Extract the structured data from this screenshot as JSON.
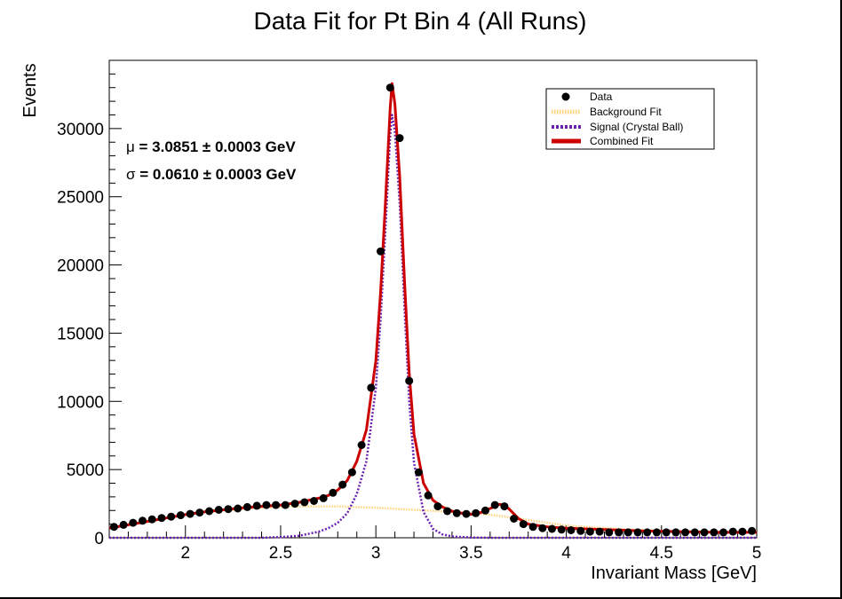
{
  "chart_data": {
    "type": "scatter",
    "title": "Data Fit for Pt Bin 4 (All Runs)",
    "xlabel": "Invariant Mass [GeV]",
    "ylabel": "Events",
    "xlim": [
      1.6,
      5.0
    ],
    "ylim": [
      0,
      35000
    ],
    "xticks": [
      2,
      2.5,
      3,
      3.5,
      4,
      4.5,
      5
    ],
    "xtick_labels": [
      "2",
      "2.5",
      "3",
      "3.5",
      "4",
      "4.5",
      "5"
    ],
    "yticks": [
      0,
      5000,
      10000,
      15000,
      20000,
      25000,
      30000
    ],
    "ytick_labels": [
      "0",
      "5000",
      "10000",
      "15000",
      "20000",
      "25000",
      "30000"
    ],
    "grid": false,
    "legend_position": "top-right",
    "annotations": [
      {
        "symbol": "μ",
        "text": " = 3.0851 ± 0.0003 GeV"
      },
      {
        "symbol": "σ",
        "text": " = 0.0610 ± 0.0003 GeV"
      }
    ],
    "series": [
      {
        "name": "Data",
        "kind": "points",
        "color": "#000000",
        "x": [
          1.625,
          1.675,
          1.725,
          1.775,
          1.825,
          1.875,
          1.925,
          1.975,
          2.025,
          2.075,
          2.125,
          2.175,
          2.225,
          2.275,
          2.325,
          2.375,
          2.425,
          2.475,
          2.525,
          2.575,
          2.625,
          2.675,
          2.725,
          2.775,
          2.825,
          2.875,
          2.925,
          2.975,
          3.025,
          3.075,
          3.125,
          3.175,
          3.225,
          3.275,
          3.325,
          3.375,
          3.425,
          3.475,
          3.525,
          3.575,
          3.625,
          3.675,
          3.725,
          3.775,
          3.825,
          3.875,
          3.925,
          3.975,
          4.025,
          4.075,
          4.125,
          4.175,
          4.225,
          4.275,
          4.325,
          4.375,
          4.425,
          4.475,
          4.525,
          4.575,
          4.625,
          4.675,
          4.725,
          4.775,
          4.825,
          4.875,
          4.925,
          4.975
        ],
        "y": [
          800,
          950,
          1100,
          1250,
          1350,
          1450,
          1550,
          1650,
          1750,
          1850,
          1950,
          2050,
          2100,
          2150,
          2250,
          2350,
          2400,
          2400,
          2400,
          2500,
          2600,
          2700,
          2900,
          3300,
          3900,
          4800,
          6800,
          11000,
          21000,
          33000,
          29300,
          11500,
          4800,
          3100,
          2300,
          1950,
          1800,
          1750,
          1800,
          2000,
          2400,
          2300,
          1400,
          1000,
          800,
          700,
          650,
          600,
          550,
          500,
          450,
          450,
          400,
          400,
          400,
          400,
          400,
          400,
          400,
          400,
          400,
          400,
          400,
          400,
          400,
          450,
          450,
          500
        ]
      },
      {
        "name": "Background Fit",
        "kind": "dotted-line",
        "color": "#ffd27a",
        "x": [
          1.6,
          1.8,
          2.0,
          2.2,
          2.4,
          2.6,
          2.8,
          3.0,
          3.2,
          3.4,
          3.6,
          3.8,
          4.0,
          4.2,
          4.4,
          4.6,
          4.8,
          5.0
        ],
        "y": [
          700,
          1200,
          1700,
          2000,
          2200,
          2300,
          2300,
          2200,
          2050,
          1900,
          1700,
          1300,
          900,
          700,
          550,
          450,
          400,
          400
        ]
      },
      {
        "name": "Signal (Crystal Ball)",
        "kind": "dashed-line",
        "color": "#6a1fb0",
        "x": [
          1.6,
          2.4,
          2.5,
          2.6,
          2.7,
          2.75,
          2.8,
          2.85,
          2.9,
          2.95,
          3.0,
          3.025,
          3.05,
          3.075,
          3.0851,
          3.1,
          3.125,
          3.15,
          3.175,
          3.2,
          3.25,
          3.3,
          3.35,
          3.4,
          3.5,
          3.6,
          3.7,
          5.0
        ],
        "y": [
          0,
          0,
          50,
          150,
          450,
          700,
          1100,
          1800,
          3200,
          5600,
          11000,
          16000,
          22500,
          29500,
          31000,
          29800,
          24500,
          17000,
          10000,
          5500,
          1900,
          650,
          250,
          100,
          20,
          0,
          0,
          0
        ]
      },
      {
        "name": "Combined Fit",
        "kind": "solid-line",
        "color": "#cc0000",
        "x": [
          1.6,
          1.7,
          1.8,
          1.9,
          2.0,
          2.1,
          2.2,
          2.3,
          2.4,
          2.5,
          2.6,
          2.7,
          2.75,
          2.8,
          2.85,
          2.9,
          2.95,
          3.0,
          3.025,
          3.05,
          3.075,
          3.0851,
          3.1,
          3.125,
          3.15,
          3.175,
          3.2,
          3.25,
          3.3,
          3.35,
          3.4,
          3.45,
          3.5,
          3.55,
          3.6,
          3.65,
          3.675,
          3.7,
          3.75,
          3.8,
          3.9,
          4.0,
          4.2,
          4.4,
          4.6,
          4.8,
          5.0
        ],
        "y": [
          700,
          950,
          1200,
          1450,
          1700,
          1900,
          2050,
          2200,
          2300,
          2400,
          2600,
          2900,
          3100,
          3500,
          4200,
          5600,
          7900,
          13000,
          18000,
          24500,
          31500,
          33300,
          31800,
          26500,
          19000,
          12100,
          7600,
          4000,
          2750,
          2250,
          1950,
          1800,
          1720,
          1850,
          2150,
          2450,
          2400,
          2100,
          1400,
          1000,
          800,
          700,
          600,
          500,
          450,
          400,
          400
        ]
      }
    ]
  }
}
